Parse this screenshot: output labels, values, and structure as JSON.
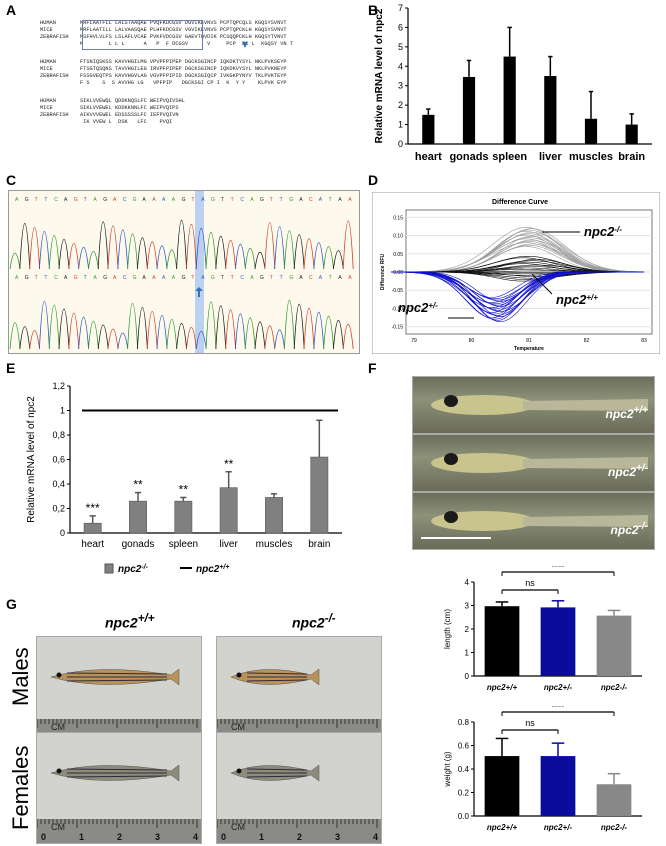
{
  "panels": {
    "A": "A",
    "B": "B",
    "C": "C",
    "D": "D",
    "E": "E",
    "F": "F",
    "G": "G"
  },
  "alignment": {
    "blocks": [
      {
        "rows": [
          {
            "name": "HUMAN",
            "seq": "MRFLAATFLL LALSTAAQAE PVQFKDCGSV DGVIKEVNVS PCPTQPCQLS KGQSYSVNVT"
          },
          {
            "name": "MICE",
            "seq": "MRFLAATILL LALVAASQAE PLHFKDCGSV VGVIKEVNVS PCPTQPCKLH KGQSYSVNVT"
          },
          {
            "name": "ZEBRAFISH",
            "seq": "MSFHVLVLFS LSLAFLVCAE PVKFVDCGSV GAEVTQVDIK PCSQQPCKLH KGQSYTVNVT"
          },
          {
            "name": "",
            "seq": "M        L L L      A   P  F DCGSV      V     PCP  PC L  KGQSY VN T"
          }
        ]
      },
      {
        "rows": [
          {
            "name": "HUMAN",
            "seq": "FTSNIQSKSS KAVVHGILMG VPVPFPIPEP DGCKSGINCP IQKDKTYSYL NKLPVKSEYP"
          },
          {
            "name": "MICE",
            "seq": "FTSGTQSQNS TAVVHGILEG IRVPFPIPEP DGCKSGINCP IQKDKVYSYL NKLPVKNEYP"
          },
          {
            "name": "ZEBRAFISH",
            "seq": "FSSGVEQTPS KAVVHGVLAG VGVPFPIPID DGCKSGIQCP IVKGKPYNYV TKLPVKTEYP"
          },
          {
            "name": "",
            "seq": "F S    S  S AVVHG LG   VPFPIP   DGCKSGI CP I  K  Y Y    KLPVK EYP"
          }
        ]
      },
      {
        "rows": [
          {
            "name": "HUMAN",
            "seq": "SIKLVVEWQL QDDKNQSLFC WEIPVQIVSHL"
          },
          {
            "name": "MICE",
            "seq": "SIKLVVEWEL KDDKKNNLFC WEIPVQIPS"
          },
          {
            "name": "ZEBRAFISH",
            "seq": "AIKVVVEWEL EDSSSSSLFC IEFPVQIVN"
          },
          {
            "name": "",
            "seq": " IK VVEW L  DSK   LFC    PVQI"
          }
        ]
      }
    ]
  },
  "panel_b": {
    "chart_data": {
      "type": "bar",
      "categories": [
        "heart",
        "gonads",
        "spleen",
        "liver",
        "muscles",
        "brain"
      ],
      "values": [
        1.5,
        3.45,
        4.5,
        3.5,
        1.3,
        1.0
      ],
      "errors": [
        0.3,
        0.85,
        1.5,
        1.0,
        1.4,
        0.55
      ],
      "ylabel": "Relative mRNA level of npc2",
      "ylim": [
        0,
        7
      ],
      "yticks": [
        "0",
        "1",
        "2",
        "3",
        "4",
        "5",
        "6",
        "7"
      ]
    }
  },
  "panel_c": {
    "note": ""
  },
  "panel_d": {
    "title": "Difference Curve",
    "ylabel": "Difference RFU",
    "xlabel": "Temperature",
    "xticks": [
      "79",
      "80",
      "81",
      "82",
      "83"
    ],
    "yticks": [
      "0.15",
      "0.10",
      "0.05",
      "0.00",
      "-0.05",
      "-0.10",
      "-0.15"
    ],
    "labels": {
      "ko": "npc2",
      "ko_sup": "-/-",
      "wt": "npc2",
      "wt_sup": "+/+",
      "het": "npc2",
      "het_sup": "+/-"
    },
    "colors": {
      "ko": "#9a9a9a",
      "wt": "#111111",
      "het": "#1010d0"
    }
  },
  "panel_e": {
    "chart_data": {
      "type": "bar",
      "categories": [
        "heart",
        "gonads",
        "spleen",
        "liver",
        "muscles",
        "brain"
      ],
      "values": [
        0.08,
        0.26,
        0.26,
        0.37,
        0.29,
        0.62
      ],
      "errors": [
        0.06,
        0.07,
        0.03,
        0.13,
        0.03,
        0.3
      ],
      "stars": [
        "***",
        "**",
        "**",
        "**",
        "",
        ""
      ],
      "reference": 1,
      "ylabel": "Relative mRNA level of npc2",
      "ylim": [
        0,
        1.2
      ],
      "yticks": [
        "0",
        "0,2",
        "0,4",
        "0,6",
        "0,8",
        "1",
        "1,2"
      ],
      "legend": [
        {
          "name": "npc2",
          "sup": "-/-",
          "kind": "bar"
        },
        {
          "name": "npc2",
          "sup": "+/+",
          "kind": "line"
        }
      ]
    }
  },
  "panel_f": {
    "fish": [
      {
        "name": "npc2",
        "sup": "+/+"
      },
      {
        "name": "npc2",
        "sup": "+/-"
      },
      {
        "name": "npc2",
        "sup": "-/-"
      }
    ]
  },
  "panel_g": {
    "cols": [
      {
        "name": "npc2",
        "sup": "+/+"
      },
      {
        "name": "npc2",
        "sup": "-/-"
      }
    ],
    "rows": [
      "Males",
      "Females"
    ],
    "ruler": [
      "0",
      "1",
      "2",
      "3",
      "4"
    ],
    "ruler_unit": "CM"
  },
  "length_chart": {
    "chart_data": {
      "type": "bar",
      "categories": [
        "npc2+/+",
        "npc2+/-",
        "npc2-/-"
      ],
      "values": [
        2.97,
        2.92,
        2.57
      ],
      "errors": [
        0.18,
        0.28,
        0.22
      ],
      "colors": [
        "#000000",
        "#0b0b9c",
        "#888888"
      ],
      "ylabel": "length (cm)",
      "ylim": [
        0,
        4
      ],
      "yticks": [
        "0",
        "1",
        "2",
        "3",
        "4"
      ],
      "sig": [
        {
          "label": "****"
        },
        {
          "label": "ns"
        }
      ]
    }
  },
  "weight_chart": {
    "chart_data": {
      "type": "bar",
      "categories": [
        "npc2+/+",
        "npc2+/-",
        "npc2-/-"
      ],
      "values": [
        0.51,
        0.51,
        0.27
      ],
      "errors": [
        0.15,
        0.11,
        0.09
      ],
      "colors": [
        "#000000",
        "#0b0b9c",
        "#888888"
      ],
      "ylabel": "weight (g)",
      "ylim": [
        0,
        0.8
      ],
      "yticks": [
        "0.0",
        "0.2",
        "0.4",
        "0.6",
        "0.8"
      ],
      "sig": [
        {
          "label": "****"
        },
        {
          "label": "ns"
        }
      ]
    }
  }
}
